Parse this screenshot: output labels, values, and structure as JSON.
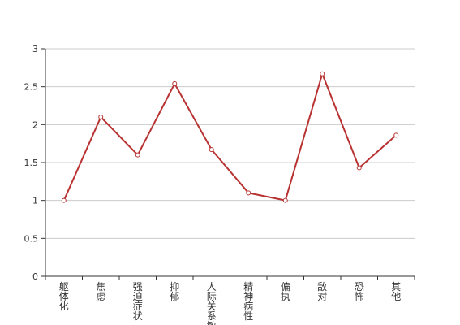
{
  "chart_data": {
    "type": "line",
    "categories": [
      "躯体化",
      "焦虑",
      "强迫症状",
      "抑郁",
      "人际关系敏感",
      "精神病性",
      "偏执",
      "敌对",
      "恐怖",
      "其他"
    ],
    "series": [
      {
        "values": [
          1.0,
          2.1,
          1.6,
          2.54,
          1.67,
          1.1,
          1.0,
          2.67,
          1.43,
          1.86
        ]
      }
    ],
    "yticks": [
      "0",
      "0.5",
      "1",
      "1.5",
      "2",
      "2.5",
      "3"
    ],
    "ylim": [
      0,
      3
    ],
    "grid": true,
    "colors": {
      "line": "#b83232",
      "marker_fill": "#ffffff",
      "grid": "#cccccc",
      "axis": "#333333"
    }
  }
}
